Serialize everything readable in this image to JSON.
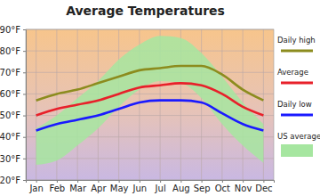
{
  "chart_data": {
    "type": "line",
    "title": "Average Temperatures",
    "categories": [
      "Jan",
      "Feb",
      "Mar",
      "Apr",
      "May",
      "Jun",
      "Jul",
      "Aug",
      "Sep",
      "Oct",
      "Nov",
      "Dec"
    ],
    "series": [
      {
        "name": "Daily high",
        "color": "#8c8c1e",
        "values": [
          57,
          60,
          62,
          65,
          68,
          71,
          72,
          73,
          73,
          69,
          62,
          57
        ]
      },
      {
        "name": "Average",
        "color": "#e8202a",
        "values": [
          50,
          53,
          55,
          57,
          60,
          63,
          64,
          65,
          64,
          60,
          54,
          50
        ]
      },
      {
        "name": "Daily low",
        "color": "#1a1aff",
        "values": [
          43,
          46,
          48,
          50,
          53,
          56,
          57,
          57,
          56,
          51,
          46,
          43
        ]
      },
      {
        "name": "US average",
        "color": "#a6e6a0",
        "type": "area",
        "values": [
          44,
          50,
          58,
          66,
          76,
          83,
          87,
          86,
          79,
          68,
          56,
          46
        ],
        "low": [
          27,
          29,
          36,
          44,
          54,
          62,
          66,
          65,
          58,
          46,
          36,
          28
        ]
      }
    ],
    "ylim": [
      20,
      90
    ],
    "yticks": [
      {
        "value": 20,
        "label": "20°F"
      },
      {
        "value": 30,
        "label": "30°F"
      },
      {
        "value": 40,
        "label": "40°F"
      },
      {
        "value": 50,
        "label": "50°F"
      },
      {
        "value": 60,
        "label": "60°F"
      },
      {
        "value": 70,
        "label": "70°F"
      },
      {
        "value": 80,
        "label": "80°F"
      },
      {
        "value": 90,
        "label": "90°F"
      }
    ],
    "grid": true,
    "legend": "right"
  }
}
